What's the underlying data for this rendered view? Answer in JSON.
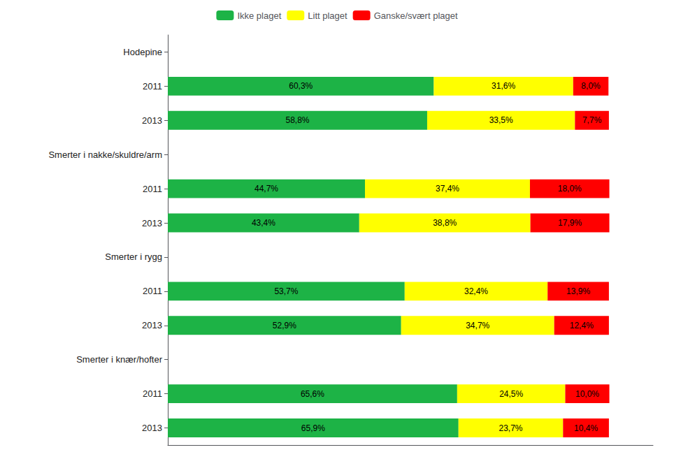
{
  "chart_data": {
    "type": "bar",
    "orientation": "horizontal",
    "stacked": true,
    "data_labels": true,
    "tick_labels": "y",
    "grid": false,
    "legend": "top",
    "categories": [
      "Hodepine",
      "2011",
      "2013",
      "Smerter i nakke/skuldre/arm",
      "2011",
      "2013",
      "Smerter i rygg",
      "2011",
      "2013",
      "Smerter i knær/hofter",
      "2011",
      "2013"
    ],
    "xlim": [
      0,
      110
    ],
    "series": [
      {
        "name": "Ikke plaget",
        "color": "#1DB346",
        "values": [
          null,
          60.3,
          58.8,
          null,
          44.7,
          43.4,
          null,
          53.7,
          52.9,
          null,
          65.6,
          65.9
        ],
        "value_labels": [
          null,
          "60,3%",
          "58,8%",
          null,
          "44,7%",
          "43,4%",
          null,
          "53,7%",
          "52,9%",
          null,
          "65,6%",
          "65,9%"
        ]
      },
      {
        "name": "Litt plaget",
        "color": "#FFFF00",
        "values": [
          null,
          31.6,
          33.5,
          null,
          37.4,
          38.8,
          null,
          32.4,
          34.7,
          null,
          24.5,
          23.7
        ],
        "value_labels": [
          null,
          "31,6%",
          "33,5%",
          null,
          "37,4%",
          "38,8%",
          null,
          "32,4%",
          "34,7%",
          null,
          "24,5%",
          "23,7%"
        ]
      },
      {
        "name": "Ganske/svært plaget",
        "color": "#FF0000",
        "values": [
          null,
          8.0,
          7.7,
          null,
          18.0,
          17.9,
          null,
          13.9,
          12.4,
          null,
          10.0,
          10.4
        ],
        "value_labels": [
          null,
          "8,0%",
          "7,7%",
          null,
          "18,0%",
          "17,9%",
          null,
          "13,9%",
          "12,4%",
          null,
          "10,0%",
          "10,4%"
        ]
      }
    ]
  }
}
